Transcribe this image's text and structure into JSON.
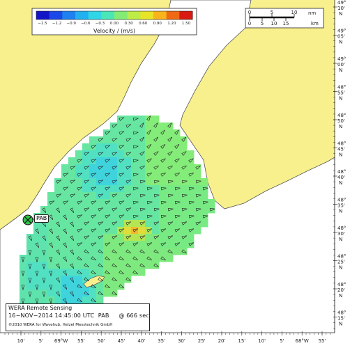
{
  "colorbar": {
    "title": "Velocity / (m/s)",
    "ticks": [
      "−1.5",
      "−1.2",
      "−0.9",
      "−0.6",
      "−0.3",
      "0.00",
      "0.30",
      "0.60",
      "0.90",
      "1.20",
      "1.50"
    ],
    "colors": [
      "#1515c8",
      "#1a49e8",
      "#1f80f0",
      "#22b0f0",
      "#30d6e6",
      "#4ae6b8",
      "#84ec74",
      "#bdec48",
      "#e8e428",
      "#f8b41a",
      "#f06a14",
      "#d81a12"
    ]
  },
  "scale_bar": {
    "nm_labels": [
      "0",
      "5",
      "10"
    ],
    "nm_unit": "nm",
    "km_labels": [
      "0",
      "5",
      "10",
      "15"
    ],
    "km_unit": "km"
  },
  "lat_labels": [
    {
      "deg": "49°",
      "min": "10'",
      "hem": "N"
    },
    {
      "deg": "49°",
      "min": "05'",
      "hem": "N"
    },
    {
      "deg": "49°",
      "min": "00'",
      "hem": "N"
    },
    {
      "deg": "48°",
      "min": "55'",
      "hem": "N"
    },
    {
      "deg": "48°",
      "min": "50'",
      "hem": "N"
    },
    {
      "deg": "48°",
      "min": "45'",
      "hem": "N"
    },
    {
      "deg": "48°",
      "min": "40'",
      "hem": "N"
    },
    {
      "deg": "48°",
      "min": "35'",
      "hem": "N"
    },
    {
      "deg": "48°",
      "min": "30'",
      "hem": "N"
    },
    {
      "deg": "48°",
      "min": "25'",
      "hem": "N"
    },
    {
      "deg": "48°",
      "min": "20'",
      "hem": "N"
    },
    {
      "deg": "48°",
      "min": "15'",
      "hem": "N"
    }
  ],
  "lon_labels": [
    "10'",
    "5'",
    "69°W",
    "55'",
    "50'",
    "45'",
    "40'",
    "35'",
    "30'",
    "25'",
    "20'",
    "15'",
    "10'",
    "5'",
    "68°W",
    "55'"
  ],
  "station": {
    "name": "PAB"
  },
  "info": {
    "title": "WERA Remote Sensing",
    "datetime": "16−NOV−2014 14:45:00 UTC",
    "station": "PAB",
    "interval": "@ 666 sec",
    "copyright": "©2010 WERA for Wavehub, Helzel Messtechnik GmbH"
  },
  "colors": {
    "land": "#f8f08c",
    "sea": "#ffffff",
    "coast": "#555555"
  }
}
